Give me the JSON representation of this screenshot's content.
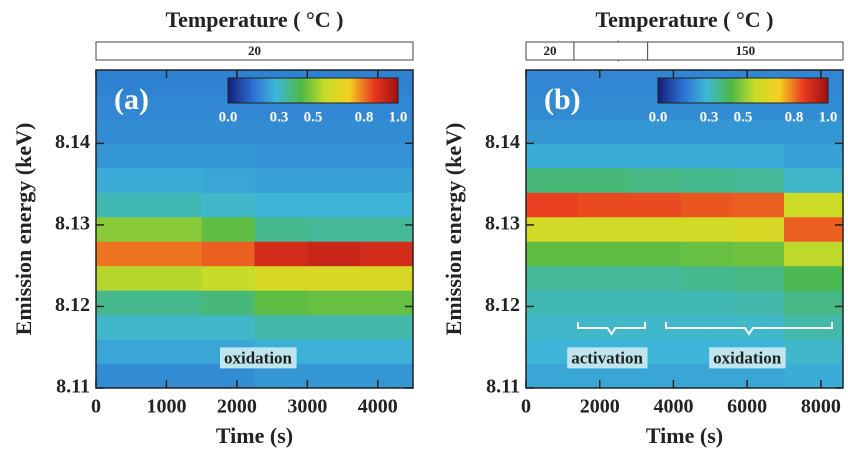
{
  "chart_data": [
    {
      "type": "heatmap",
      "title": "Temperature ( °C )",
      "x_label": "Time (s)",
      "y_label": "Emission energy (keV)",
      "panel_label": "(a)",
      "temperature_segments": [
        {
          "label": "20",
          "x": [
            0,
            4500
          ]
        }
      ],
      "xlim": [
        0,
        4500
      ],
      "xticks": [
        0,
        1000,
        2000,
        3000,
        4000
      ],
      "ylim": [
        8.11,
        8.149
      ],
      "yticks": [
        8.11,
        8.12,
        8.13,
        8.14
      ],
      "x_bins": [
        0,
        750,
        1500,
        2250,
        3000,
        3750,
        4500
      ],
      "y_bins": [
        8.11,
        8.113,
        8.116,
        8.119,
        8.122,
        8.125,
        8.128,
        8.131,
        8.134,
        8.137,
        8.14,
        8.143,
        8.146,
        8.149
      ],
      "z": [
        [
          0.2,
          0.2,
          0.2,
          0.22,
          0.22,
          0.22
        ],
        [
          0.25,
          0.25,
          0.25,
          0.27,
          0.27,
          0.27
        ],
        [
          0.3,
          0.3,
          0.3,
          0.33,
          0.33,
          0.33
        ],
        [
          0.36,
          0.36,
          0.38,
          0.45,
          0.46,
          0.46
        ],
        [
          0.55,
          0.55,
          0.57,
          0.62,
          0.62,
          0.62
        ],
        [
          0.8,
          0.8,
          0.82,
          0.9,
          0.92,
          0.9
        ],
        [
          0.5,
          0.5,
          0.45,
          0.36,
          0.35,
          0.35
        ],
        [
          0.32,
          0.32,
          0.3,
          0.28,
          0.28,
          0.28
        ],
        [
          0.26,
          0.26,
          0.25,
          0.24,
          0.24,
          0.24
        ],
        [
          0.22,
          0.22,
          0.22,
          0.21,
          0.21,
          0.21
        ],
        [
          0.2,
          0.2,
          0.2,
          0.2,
          0.2,
          0.2
        ],
        [
          0.19,
          0.19,
          0.19,
          0.19,
          0.19,
          0.19
        ],
        [
          0.18,
          0.18,
          0.18,
          0.18,
          0.18,
          0.18
        ]
      ],
      "colormap": [
        "#141f7a",
        "#2a6fd0",
        "#3fb8d8",
        "#4cb848",
        "#c8dc28",
        "#f4d020",
        "#e83820",
        "#a01010"
      ],
      "colorbar_ticks": [
        {
          "value": 0,
          "label": "0.0"
        },
        0.3,
        0.5,
        0.8,
        {
          "value": 1,
          "label": "1.0"
        }
      ],
      "annotations": [
        {
          "text": "oxidation",
          "x": 2300,
          "y": 8.1135
        }
      ]
    },
    {
      "type": "heatmap",
      "title": "Temperature ( °C )",
      "x_label": "Time (s)",
      "y_label": "Emission energy (keV)",
      "panel_label": "(b)",
      "temperature_segments": [
        {
          "label": "20",
          "x": [
            0,
            1300
          ]
        },
        {
          "label": "150",
          "x": [
            3300,
            8600
          ]
        }
      ],
      "xlim": [
        0,
        8600
      ],
      "xticks": [
        0,
        2000,
        4000,
        6000,
        8000
      ],
      "ylim": [
        8.11,
        8.149
      ],
      "yticks": [
        8.11,
        8.12,
        8.13,
        8.14
      ],
      "x_bins": [
        0,
        1400,
        2800,
        4200,
        5600,
        7000,
        8600
      ],
      "y_bins": [
        8.11,
        8.113,
        8.116,
        8.119,
        8.122,
        8.125,
        8.128,
        8.131,
        8.134,
        8.137,
        8.14,
        8.143,
        8.146,
        8.149
      ],
      "z": [
        [
          0.25,
          0.25,
          0.25,
          0.25,
          0.25,
          0.26
        ],
        [
          0.28,
          0.28,
          0.28,
          0.28,
          0.28,
          0.3
        ],
        [
          0.3,
          0.3,
          0.3,
          0.3,
          0.3,
          0.33
        ],
        [
          0.32,
          0.32,
          0.32,
          0.32,
          0.33,
          0.37
        ],
        [
          0.35,
          0.35,
          0.35,
          0.36,
          0.37,
          0.42
        ],
        [
          0.45,
          0.45,
          0.45,
          0.46,
          0.47,
          0.56
        ],
        [
          0.6,
          0.6,
          0.6,
          0.6,
          0.62,
          0.82
        ],
        [
          0.85,
          0.84,
          0.84,
          0.83,
          0.82,
          0.58
        ],
        [
          0.38,
          0.38,
          0.37,
          0.36,
          0.35,
          0.3
        ],
        [
          0.26,
          0.26,
          0.26,
          0.26,
          0.26,
          0.24
        ],
        [
          0.22,
          0.22,
          0.22,
          0.22,
          0.22,
          0.22
        ],
        [
          0.2,
          0.2,
          0.2,
          0.2,
          0.2,
          0.2
        ],
        [
          0.19,
          0.19,
          0.19,
          0.19,
          0.19,
          0.19
        ]
      ],
      "colormap": [
        "#141f7a",
        "#2a6fd0",
        "#3fb8d8",
        "#4cb848",
        "#c8dc28",
        "#f4d020",
        "#e83820",
        "#a01010"
      ],
      "colorbar_ticks": [
        {
          "value": 0,
          "label": "0.0"
        },
        0.3,
        0.5,
        0.8,
        {
          "value": 1,
          "label": "1.0"
        }
      ],
      "annotations": [
        {
          "text": "activation",
          "x": 2200,
          "y": 8.1135
        },
        {
          "text": "oxidation",
          "x": 6000,
          "y": 8.1135
        }
      ]
    }
  ]
}
